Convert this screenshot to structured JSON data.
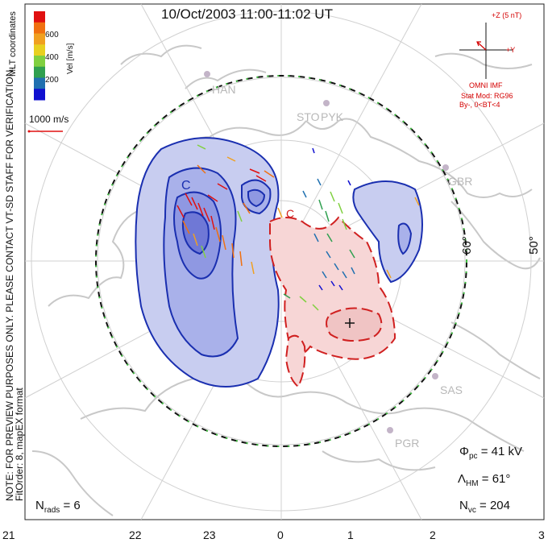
{
  "title": "10/Oct/2003 11:00-11:02 UT",
  "side_note": "NOTE: FOR PREVIEW PURPOSES ONLY. PLEASE CONTACT VT-SD STAFF FOR VERIFICATION.",
  "fit_order": "FitOrder: 8, mapEX format",
  "coord_label": "MLT coordinates",
  "colorbar": {
    "title": "Vel [m/s]",
    "ticks": [
      "600",
      "400",
      "200"
    ],
    "colors": [
      "#e01010",
      "#f07010",
      "#f0a020",
      "#e8d020",
      "#80d040",
      "#30a050",
      "#2070b0",
      "#1010d0"
    ]
  },
  "ref_vector_label": "1000 m/s",
  "imf": {
    "z_label": "+Z (5 nT)",
    "y_label": "+Y",
    "source": "OMNI IMF",
    "model": "Stat Mod: RG96",
    "condition": "By-, 0<BT<4"
  },
  "stats": {
    "phi_symbol": "Φ",
    "phi_sub": "pc",
    "phi_value": "= 41 kV",
    "lambda_symbol": "Λ",
    "lambda_sub": "HM",
    "lambda_value": "= 61°",
    "nvc_symbol": "N",
    "nvc_sub": "vc",
    "nvc_value": "= 204",
    "nrads_symbol": "N",
    "nrads_sub": "rads",
    "nrads_value": "= 6"
  },
  "mlt_ticks": [
    "21",
    "22",
    "23",
    "0",
    "1",
    "2",
    "3"
  ],
  "lat_labels": [
    "60°",
    "50°"
  ],
  "stations": [
    "HAN",
    "STO",
    "PYK",
    "GBR",
    "SAS",
    "PGR"
  ],
  "markers": [
    "C",
    "C"
  ],
  "colors": {
    "negative_cell": "#1a2fb0",
    "positive_cell": "#d02020",
    "neg_fill": "#c8cdf0",
    "pos_fill": "#f7d6d6",
    "coast": "#c8c8c8",
    "grid": "#d0d0d0",
    "heppner_maynard": "#40c040"
  }
}
